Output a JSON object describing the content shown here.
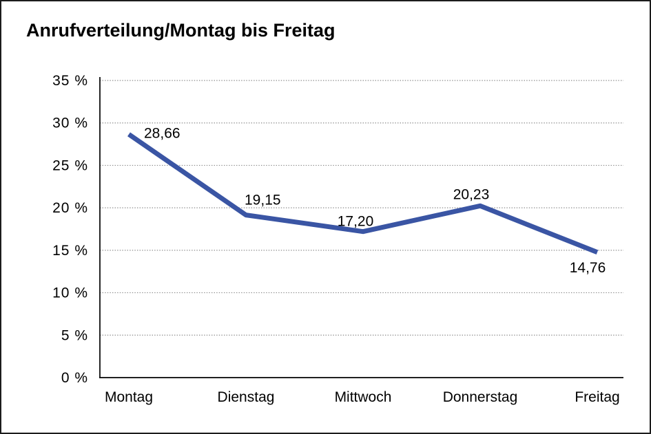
{
  "title": "Anrufverteilung/Montag bis Freitag",
  "colors": {
    "line": "#3A55A4",
    "grid": "#8a8a8a",
    "axis": "#000000",
    "border": "#1c1c1c",
    "background": "#ffffff",
    "text": "#000000"
  },
  "chart_data": {
    "type": "line",
    "title": "Anrufverteilung/Montag bis Freitag",
    "categories": [
      "Montag",
      "Dienstag",
      "Mittwoch",
      "Donnerstag",
      "Freitag"
    ],
    "values": [
      28.66,
      19.15,
      17.2,
      20.23,
      14.76
    ],
    "value_labels": [
      "28,66",
      "19,15",
      "17,20",
      "20,23",
      "14,76"
    ],
    "xlabel": "",
    "ylabel": "",
    "ylim": [
      0,
      35
    ],
    "y_tick_step": 5,
    "y_tick_values": [
      0,
      5,
      10,
      15,
      20,
      25,
      30,
      35
    ],
    "y_tick_labels": [
      "0 %",
      "5 %",
      "10 %",
      "15 %",
      "20 %",
      "25 %",
      "30 %",
      "35 %"
    ],
    "grid": "horizontal-dotted",
    "legend": "none",
    "markers": "none",
    "line_color": "#3A55A4"
  }
}
